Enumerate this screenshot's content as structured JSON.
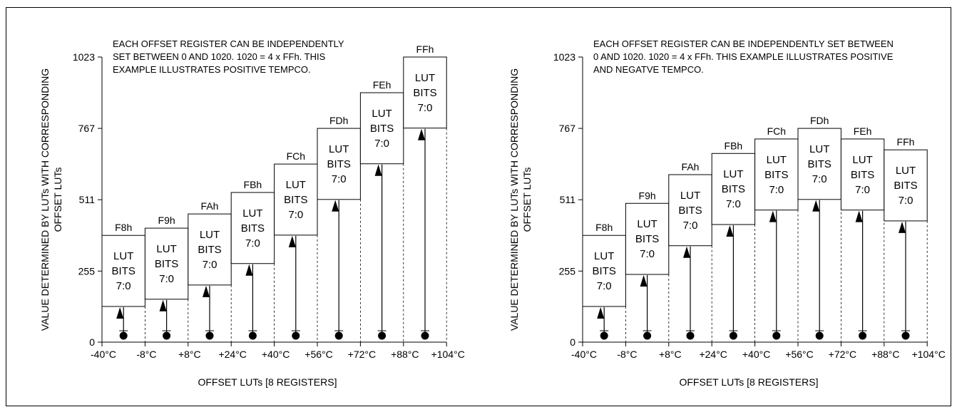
{
  "panels": [
    {
      "note_lines": [
        "EACH OFFSET REGISTER CAN BE INDEPENDENTLY",
        "SET BETWEEN 0 AND 1020. 1020 = 4 x FFh. THIS",
        "EXAMPLE ILLUSTRATES POSITIVE TEMPCO."
      ],
      "ylabel_lines": [
        "VALUE DETERMINED BY LUTs WITH CORRESPONDING",
        "OFFSET LUTs"
      ],
      "xlabel": "OFFSET LUTs [8 REGISTERS]",
      "y_ticks": [
        "0",
        "255",
        "511",
        "767",
        "1023"
      ],
      "x_ticks": [
        "-40°C",
        "-8°C",
        "+8°C",
        "+24°C",
        "+40°C",
        "+56°C",
        "+72°C",
        "+88°C",
        "+104°C"
      ],
      "registers": [
        {
          "name": "F8h",
          "lut": [
            "LUT",
            "BITS",
            "7:0"
          ],
          "offset": 128,
          "top": 383
        },
        {
          "name": "F9h",
          "lut": [
            "LUT",
            "BITS",
            "7:0"
          ],
          "offset": 154,
          "top": 409
        },
        {
          "name": "FAh",
          "lut": [
            "LUT",
            "BITS",
            "7:0"
          ],
          "offset": 205,
          "top": 460
        },
        {
          "name": "FBh",
          "lut": [
            "LUT",
            "BITS",
            "7:0"
          ],
          "offset": 282,
          "top": 537
        },
        {
          "name": "FCh",
          "lut": [
            "LUT",
            "BITS",
            "7:0"
          ],
          "offset": 384,
          "top": 639
        },
        {
          "name": "FDh",
          "lut": [
            "LUT",
            "BITS",
            "7:0"
          ],
          "offset": 512,
          "top": 767
        },
        {
          "name": "FEh",
          "lut": [
            "LUT",
            "BITS",
            "7:0"
          ],
          "offset": 640,
          "top": 895
        },
        {
          "name": "FFh",
          "lut": [
            "LUT",
            "BITS",
            "7:0"
          ],
          "offset": 768,
          "top": 1023
        }
      ]
    },
    {
      "note_lines": [
        "EACH OFFSET REGISTER CAN BE INDEPENDENTLY SET BETWEEN",
        "0 AND 1020. 1020 = 4 x FFh. THIS EXAMPLE ILLUSTRATES POSITIVE",
        "AND NEGATVE TEMPCO."
      ],
      "ylabel_lines": [
        "VALUE DETERMINED BY LUTs WITH CORRESPONDING",
        "OFFSET LUTs"
      ],
      "xlabel": "OFFSET LUTs [8 REGISTERS]",
      "y_ticks": [
        "0",
        "255",
        "511",
        "767",
        "1023"
      ],
      "x_ticks": [
        "-40°C",
        "-8°C",
        "+8°C",
        "+24°C",
        "+40°C",
        "+56°C",
        "+72°C",
        "+88°C",
        "+104°C"
      ],
      "registers": [
        {
          "name": "F8h",
          "lut": [
            "LUT",
            "BITS",
            "7:0"
          ],
          "offset": 128,
          "top": 383
        },
        {
          "name": "F9h",
          "lut": [
            "LUT",
            "BITS",
            "7:0"
          ],
          "offset": 243,
          "top": 498
        },
        {
          "name": "FAh",
          "lut": [
            "LUT",
            "BITS",
            "7:0"
          ],
          "offset": 346,
          "top": 601
        },
        {
          "name": "FBh",
          "lut": [
            "LUT",
            "BITS",
            "7:0"
          ],
          "offset": 422,
          "top": 677
        },
        {
          "name": "FCh",
          "lut": [
            "LUT",
            "BITS",
            "7:0"
          ],
          "offset": 474,
          "top": 729
        },
        {
          "name": "FDh",
          "lut": [
            "LUT",
            "BITS",
            "7:0"
          ],
          "offset": 512,
          "top": 767
        },
        {
          "name": "FEh",
          "lut": [
            "LUT",
            "BITS",
            "7:0"
          ],
          "offset": 474,
          "top": 729
        },
        {
          "name": "FFh",
          "lut": [
            "LUT",
            "BITS",
            "7:0"
          ],
          "offset": 435,
          "top": 690
        }
      ]
    }
  ],
  "y_range": [
    0,
    1023
  ]
}
